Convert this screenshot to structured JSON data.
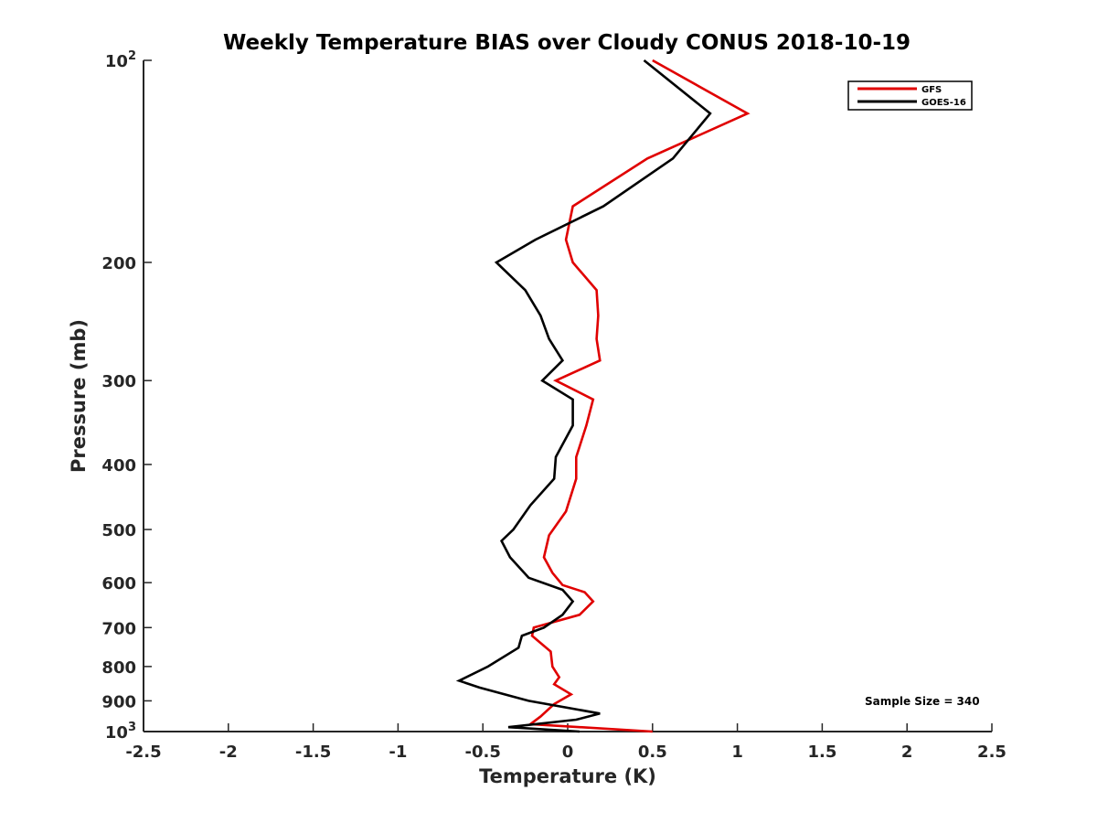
{
  "chart_data": {
    "type": "line",
    "title": "Weekly Temperature BIAS over Cloudy CONUS 2018-10-19",
    "xlabel": "Temperature (K)",
    "ylabel": "Pressure (mb)",
    "xlim": [
      -2.5,
      2.5
    ],
    "ylim": [
      100,
      1000
    ],
    "y_scale": "log",
    "y_reversed": true,
    "x_ticks": [
      "-2.5",
      "-2",
      "-1.5",
      "-1",
      "-0.5",
      "0",
      "0.5",
      "1",
      "1.5",
      "2",
      "2.5"
    ],
    "y_ticks": [
      {
        "value": 100,
        "base": "10",
        "exp": "2"
      },
      {
        "value": 200,
        "label": "200"
      },
      {
        "value": 300,
        "label": "300"
      },
      {
        "value": 400,
        "label": "400"
      },
      {
        "value": 500,
        "label": "500"
      },
      {
        "value": 600,
        "label": "600"
      },
      {
        "value": 700,
        "label": "700"
      },
      {
        "value": 800,
        "label": "800"
      },
      {
        "value": 900,
        "label": "900"
      },
      {
        "value": 1000,
        "base": "10",
        "exp": "3"
      }
    ],
    "grid": false,
    "legend_position": "top-right",
    "series": [
      {
        "name": "GFS",
        "color": "#e00000",
        "points": [
          [
            0.5,
            100
          ],
          [
            1.06,
            120
          ],
          [
            0.47,
            140
          ],
          [
            0.03,
            165
          ],
          [
            -0.01,
            185
          ],
          [
            0.03,
            200
          ],
          [
            0.17,
            220
          ],
          [
            0.18,
            240
          ],
          [
            0.17,
            260
          ],
          [
            0.19,
            280
          ],
          [
            -0.07,
            300
          ],
          [
            0.15,
            320
          ],
          [
            0.11,
            350
          ],
          [
            0.05,
            390
          ],
          [
            0.05,
            420
          ],
          [
            -0.01,
            470
          ],
          [
            -0.11,
            510
          ],
          [
            -0.14,
            550
          ],
          [
            -0.09,
            580
          ],
          [
            -0.03,
            605
          ],
          [
            0.1,
            620
          ],
          [
            0.15,
            640
          ],
          [
            0.07,
            670
          ],
          [
            -0.2,
            700
          ],
          [
            -0.21,
            720
          ],
          [
            -0.1,
            760
          ],
          [
            -0.09,
            800
          ],
          [
            -0.05,
            830
          ],
          [
            -0.08,
            850
          ],
          [
            0.02,
            880
          ],
          [
            -0.08,
            910
          ],
          [
            -0.16,
            950
          ],
          [
            -0.22,
            975
          ],
          [
            0.5,
            1000
          ]
        ]
      },
      {
        "name": "GOES-16",
        "color": "#000000",
        "points": [
          [
            0.45,
            100
          ],
          [
            0.84,
            120
          ],
          [
            0.62,
            140
          ],
          [
            0.21,
            165
          ],
          [
            -0.19,
            185
          ],
          [
            -0.42,
            200
          ],
          [
            -0.25,
            220
          ],
          [
            -0.16,
            240
          ],
          [
            -0.11,
            260
          ],
          [
            -0.03,
            280
          ],
          [
            -0.15,
            300
          ],
          [
            0.03,
            320
          ],
          [
            0.03,
            350
          ],
          [
            -0.07,
            390
          ],
          [
            -0.08,
            420
          ],
          [
            -0.22,
            460
          ],
          [
            -0.32,
            500
          ],
          [
            -0.39,
            520
          ],
          [
            -0.34,
            550
          ],
          [
            -0.23,
            590
          ],
          [
            -0.03,
            615
          ],
          [
            0.03,
            640
          ],
          [
            -0.03,
            670
          ],
          [
            -0.14,
            700
          ],
          [
            -0.27,
            720
          ],
          [
            -0.29,
            750
          ],
          [
            -0.47,
            800
          ],
          [
            -0.64,
            840
          ],
          [
            -0.52,
            860
          ],
          [
            -0.23,
            900
          ],
          [
            0.19,
            940
          ],
          [
            0.05,
            960
          ],
          [
            -0.35,
            985
          ],
          [
            0.07,
            1000
          ]
        ]
      }
    ],
    "annotation": "Sample Size = 340"
  }
}
